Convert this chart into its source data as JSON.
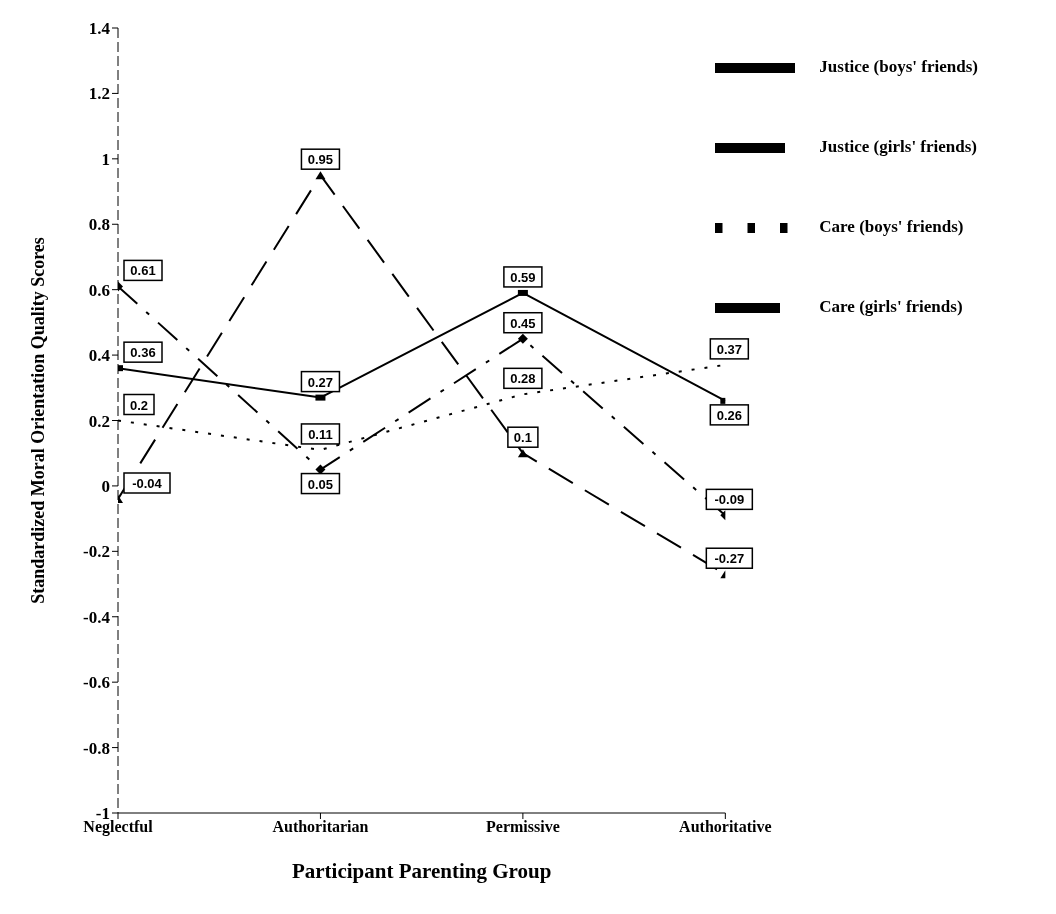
{
  "chart_data": {
    "type": "line",
    "xlabel": "Participant Parenting Group",
    "ylabel": "Standardized Moral Orientation Quality Scores",
    "categories": [
      "Neglectful",
      "Authoritarian",
      "Permissive",
      "Authoritative"
    ],
    "series": [
      {
        "name": "Justice (boys' friends)",
        "color": "#000000",
        "values": [
          0.36,
          0.27,
          0.59,
          0.26
        ],
        "line_style": "solid",
        "marker": "square"
      },
      {
        "name": "Justice (girls' friends)",
        "color": "#000000",
        "values": [
          -0.04,
          0.95,
          0.1,
          -0.27
        ],
        "line_style": "dashed",
        "marker": "triangle"
      },
      {
        "name": "Care (boys' friends)",
        "color": "#000000",
        "values": [
          0.2,
          0.11,
          0.28,
          0.37
        ],
        "line_style": "dotted",
        "marker": "none"
      },
      {
        "name": "Care (girls' friends)",
        "color": "#000000",
        "values": [
          0.61,
          0.05,
          0.45,
          -0.09
        ],
        "line_style": "dashdot",
        "marker": "diamond"
      }
    ],
    "ylim": [
      -1,
      1.4
    ],
    "yticks": [
      -1,
      -0.8,
      -0.6,
      -0.4,
      -0.2,
      0,
      0.2,
      0.4,
      0.6,
      0.8,
      1,
      1.2,
      1.4
    ],
    "grid": false,
    "legend": "top right",
    "data_labels": true
  }
}
